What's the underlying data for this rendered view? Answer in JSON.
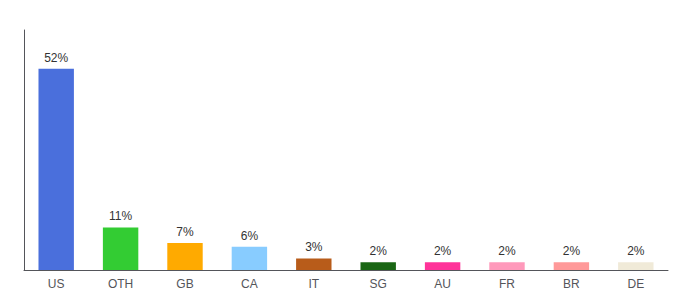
{
  "chart_data": {
    "type": "bar",
    "categories": [
      "US",
      "OTH",
      "GB",
      "CA",
      "IT",
      "SG",
      "AU",
      "FR",
      "BR",
      "DE"
    ],
    "values": [
      52,
      11,
      7,
      6,
      3,
      2,
      2,
      2,
      2,
      2
    ],
    "value_labels": [
      "52%",
      "11%",
      "7%",
      "6%",
      "3%",
      "2%",
      "2%",
      "2%",
      "2%",
      "2%"
    ],
    "colors": [
      "#4a6fdc",
      "#33cc33",
      "#ffaa00",
      "#88ccff",
      "#b85c1a",
      "#1a6614",
      "#ff3399",
      "#ff99bb",
      "#ff9999",
      "#f0ead8"
    ],
    "ylim": [
      0,
      62
    ],
    "data_labels": true,
    "tick_labels": "x",
    "grid": false
  }
}
